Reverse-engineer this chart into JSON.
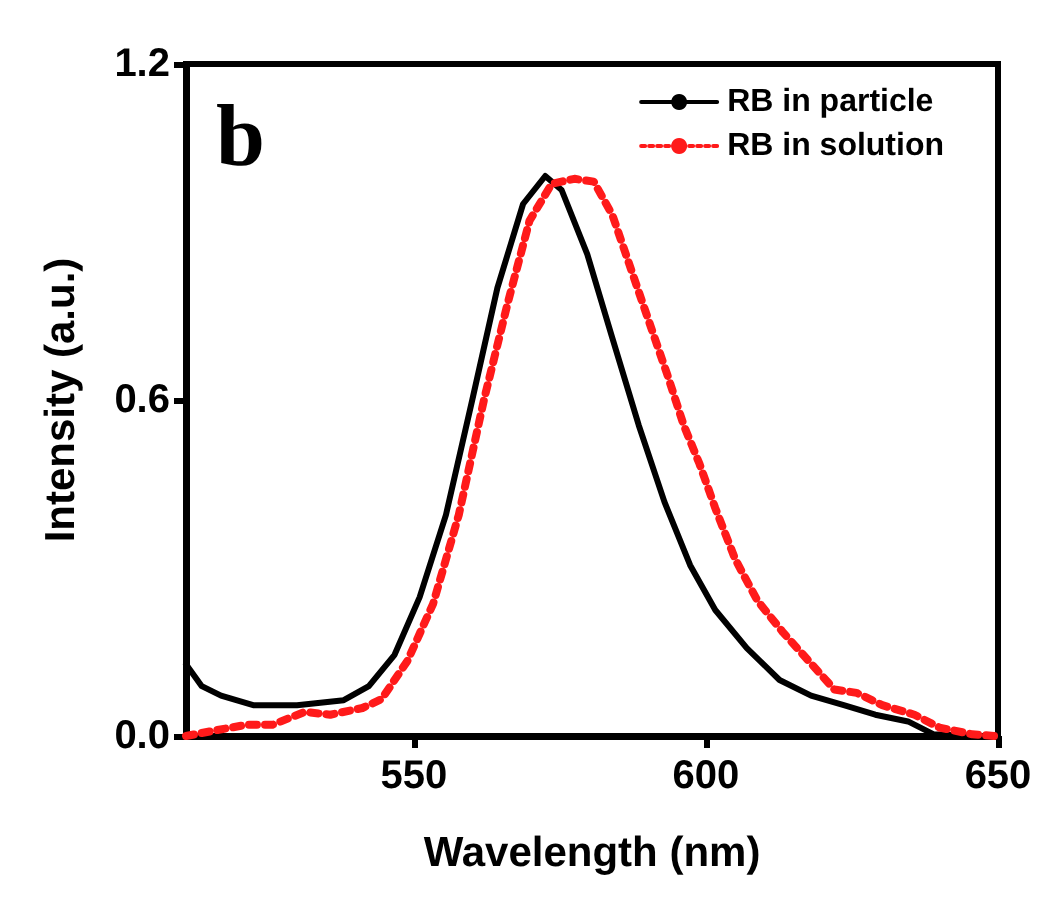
{
  "chart_data": {
    "type": "line",
    "xlabel": "Wavelength (nm)",
    "ylabel": "Intensity (a.u.)",
    "annotations": [
      "b"
    ],
    "xlim": [
      511,
      650
    ],
    "xticks": [
      550,
      600,
      650
    ],
    "ylim": [
      0,
      1.2
    ],
    "yticks": [
      {
        "value": 0,
        "label": "0.0"
      },
      {
        "value": 0.6,
        "label": "0.6"
      },
      {
        "value": 1.2,
        "label": "1.2"
      }
    ],
    "grid": false,
    "legend": "top right",
    "series": [
      {
        "name": "RB in particle",
        "color": "#000000",
        "line_style": "solid",
        "x": [
          511,
          513.7,
          517,
          522.5,
          530,
          538,
          542.3,
          546.7,
          551,
          555.5,
          560,
          564.3,
          568.7,
          572.5,
          575.3,
          579.7,
          584,
          588.5,
          592.9,
          597.3,
          601.6,
          607,
          612.6,
          618,
          623.6,
          629,
          634.6,
          639,
          645.6,
          649.5
        ],
        "values": [
          0.128,
          0.089,
          0.072,
          0.055,
          0.055,
          0.064,
          0.089,
          0.145,
          0.248,
          0.395,
          0.6,
          0.8,
          0.95,
          1.0,
          0.975,
          0.86,
          0.71,
          0.555,
          0.418,
          0.305,
          0.225,
          0.157,
          0.1,
          0.072,
          0.055,
          0.038,
          0.026,
          0.003,
          0,
          0
        ]
      },
      {
        "name": "RB in solution",
        "color": "#ff1a1a",
        "line_style": "dotted",
        "x": [
          511,
          516,
          521.4,
          525.8,
          531.3,
          535.7,
          541.2,
          544.5,
          548.9,
          553.3,
          557.7,
          562,
          566,
          569.8,
          573.6,
          577.5,
          580.8,
          584,
          586.8,
          589.6,
          593.4,
          596.2,
          598.9,
          601.6,
          605,
          608.8,
          613.2,
          617.6,
          622,
          625.8,
          630.2,
          635.7,
          640,
          645.6,
          649.5
        ],
        "values": [
          0,
          0.01,
          0.02,
          0.02,
          0.043,
          0.038,
          0.05,
          0.066,
          0.134,
          0.236,
          0.395,
          0.6,
          0.77,
          0.92,
          0.986,
          0.995,
          0.99,
          0.93,
          0.845,
          0.76,
          0.645,
          0.555,
          0.486,
          0.407,
          0.316,
          0.242,
          0.185,
          0.134,
          0.083,
          0.077,
          0.055,
          0.038,
          0.015,
          0.003,
          0
        ]
      }
    ]
  }
}
